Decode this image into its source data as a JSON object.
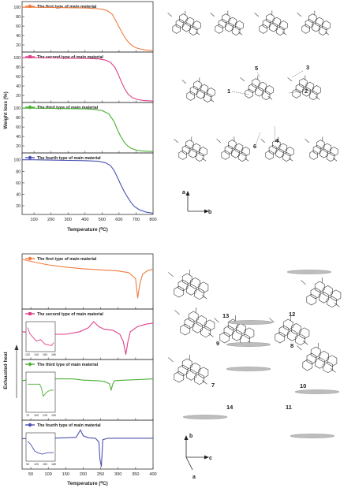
{
  "chart_data": [
    {
      "type": "line",
      "ylabel": "Weight loss (%)",
      "xlabel": "Temperature (⁰C)",
      "xlim": [
        30,
        800
      ],
      "x_ticks": [
        100,
        200,
        300,
        400,
        500,
        600,
        700,
        800
      ],
      "panels": [
        {
          "legend": "The first type of main material",
          "color": "#f07b3f",
          "ylim": [
            5,
            112
          ],
          "y_ticks": [
            20,
            40,
            60,
            80,
            100
          ],
          "x": [
            30,
            100,
            200,
            300,
            400,
            450,
            500,
            530,
            560,
            580,
            600,
            620,
            640,
            660,
            680,
            700,
            730,
            760,
            800
          ],
          "y": [
            100,
            100,
            99.5,
            99,
            98.5,
            97.5,
            96,
            93,
            85,
            72,
            58,
            45,
            33,
            24,
            18,
            14,
            11,
            9,
            8
          ]
        },
        {
          "legend": "The second type of main material",
          "color": "#e0408a",
          "ylim": [
            5,
            112
          ],
          "y_ticks": [
            20,
            40,
            60,
            80,
            100
          ],
          "x": [
            30,
            100,
            200,
            300,
            400,
            480,
            520,
            550,
            575,
            595,
            615,
            635,
            655,
            680,
            710,
            750,
            800
          ],
          "y": [
            100,
            100,
            99.5,
            99,
            98.5,
            97.5,
            95,
            90,
            80,
            65,
            48,
            33,
            22,
            15,
            11,
            9,
            8
          ]
        },
        {
          "legend": "The third type of main material",
          "color": "#4caf35",
          "ylim": [
            5,
            112
          ],
          "y_ticks": [
            20,
            40,
            60,
            80,
            100
          ],
          "x": [
            30,
            100,
            200,
            300,
            400,
            450,
            500,
            540,
            570,
            590,
            610,
            630,
            650,
            670,
            700,
            740,
            800
          ],
          "y": [
            100,
            100,
            99.5,
            99,
            98.5,
            97.5,
            95,
            88,
            72,
            55,
            40,
            28,
            20,
            15,
            11,
            9,
            8
          ]
        },
        {
          "legend": "The fourth type of main material",
          "color": "#4a52b0",
          "ylim": [
            5,
            112
          ],
          "y_ticks": [
            20,
            40,
            60,
            80,
            100
          ],
          "x": [
            30,
            100,
            200,
            300,
            400,
            480,
            520,
            550,
            570,
            590,
            610,
            630,
            650,
            670,
            690,
            720,
            760,
            800
          ],
          "y": [
            100,
            100,
            99.5,
            99,
            98.5,
            97.5,
            95,
            90,
            82,
            70,
            57,
            45,
            35,
            26,
            19,
            13,
            9,
            7
          ]
        }
      ]
    },
    {
      "type": "line",
      "ylabel": "Exhausted heat",
      "xlabel": "Temperature (⁰C)",
      "xlim": [
        25,
        400
      ],
      "x_ticks": [
        50,
        100,
        150,
        200,
        250,
        300,
        350,
        400
      ],
      "panels": [
        {
          "legend": "The first type of main material",
          "color": "#f07b3f",
          "ylim": [
            0,
            10
          ],
          "x": [
            25,
            60,
            100,
            150,
            200,
            250,
            300,
            330,
            350,
            356,
            362,
            370,
            385,
            400
          ],
          "y": [
            9.0,
            8.5,
            8.0,
            7.6,
            7.3,
            7.1,
            6.9,
            6.6,
            5.5,
            2.0,
            4.5,
            6.3,
            7.0,
            7.2
          ]
        },
        {
          "legend": "The second type of main material",
          "color": "#e0408a",
          "ylim": [
            0,
            10
          ],
          "x": [
            25,
            60,
            100,
            150,
            190,
            215,
            230,
            245,
            260,
            285,
            305,
            315,
            322,
            328,
            335,
            355,
            380,
            400
          ],
          "y": [
            5.5,
            5.3,
            5.0,
            5.0,
            5.5,
            6.3,
            7.5,
            6.5,
            6.0,
            5.8,
            5.0,
            3.5,
            1.0,
            3.5,
            5.5,
            6.5,
            7.0,
            7.2
          ],
          "inset": {
            "x_ticks": [
              120,
              140,
              160,
              180
            ],
            "x": [
              110,
              125,
              140,
              150,
              160,
              175,
              185
            ],
            "y": [
              8,
              6,
              3.5,
              4,
              2.5,
              2,
              3
            ]
          }
        },
        {
          "legend": "The third type of main material",
          "color": "#4caf35",
          "ylim": [
            0,
            10
          ],
          "x": [
            25,
            60,
            90,
            100,
            110,
            130,
            170,
            200,
            240,
            260,
            275,
            280,
            285,
            290,
            320,
            360,
            400
          ],
          "y": [
            6.5,
            6.8,
            6.8,
            7.8,
            6.8,
            6.8,
            6.8,
            6.6,
            6.5,
            6.4,
            6.0,
            5.0,
            6.0,
            6.5,
            6.6,
            6.7,
            6.8
          ],
          "inset": {
            "x_ticks": [
              75,
              100,
              125,
              150
            ],
            "x": [
              75,
              100,
              110,
              115,
              120,
              125,
              130,
              140,
              150
            ],
            "y": [
              7,
              7,
              7,
              6,
              4,
              4.5,
              5,
              5.5,
              5.5
            ]
          }
        },
        {
          "legend": "The fourth type of main material",
          "color": "#4a52b0",
          "ylim": [
            0,
            10
          ],
          "x": [
            25,
            60,
            100,
            150,
            180,
            192,
            200,
            215,
            235,
            245,
            248,
            252,
            256,
            270,
            320,
            400
          ],
          "y": [
            6.2,
            6.3,
            6.3,
            6.4,
            6.5,
            8.0,
            6.8,
            6.4,
            6.3,
            5.5,
            2.0,
            0.5,
            6.0,
            6.3,
            6.3,
            6.3
          ],
          "inset": {
            "x_ticks": [
              90,
              120,
              150,
              180
            ],
            "x": [
              90,
              100,
              115,
              125,
              140,
              160,
              180
            ],
            "y": [
              7,
              6,
              3.5,
              3,
              2.5,
              3,
              3
            ]
          }
        }
      ]
    }
  ],
  "structures": {
    "top": {
      "labels": [
        "1",
        "2",
        "3",
        "4",
        "5",
        "6"
      ],
      "axis_labels": [
        "a",
        "b"
      ]
    },
    "bottom": {
      "labels": [
        "7",
        "8",
        "9",
        "10",
        "11",
        "12",
        "13",
        "14"
      ],
      "axis_labels": [
        "b",
        "c",
        "a"
      ]
    }
  }
}
